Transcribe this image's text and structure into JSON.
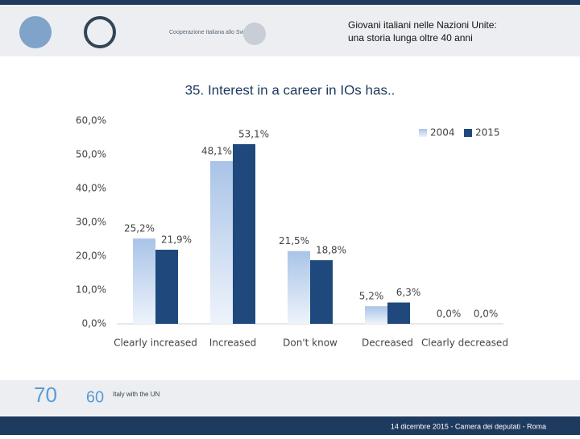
{
  "header": {
    "lines": [
      "Giovani italiani nelle Nazioni Unite:",
      "una storia lunga oltre 40 anni"
    ],
    "logo_text": "Cooperazione Italiana allo Sviluppo"
  },
  "chart_data": {
    "type": "bar",
    "title": "35. Interest in a career in IOs has..",
    "categories": [
      "Clearly increased",
      "Increased",
      "Don't know",
      "Decreased",
      "Clearly decreased"
    ],
    "series": [
      {
        "name": "2004",
        "color": "#a9c4e8",
        "values": [
          25.2,
          48.1,
          21.5,
          5.2,
          0.0
        ],
        "value_labels": [
          "25,2%",
          "48,1%",
          "21,5%",
          "5,2%",
          "0,0%"
        ]
      },
      {
        "name": "2015",
        "color": "#1f497d",
        "values": [
          21.9,
          53.1,
          18.8,
          6.3,
          0.0
        ],
        "value_labels": [
          "21,9%",
          "53,1%",
          "18,8%",
          "6,3%",
          "0,0%"
        ]
      }
    ],
    "ylim": [
      0,
      60
    ],
    "yticks": [
      {
        "value": 0,
        "label": "0,0%"
      },
      {
        "value": 10,
        "label": "10,0%"
      },
      {
        "value": 20,
        "label": "20,0%"
      },
      {
        "value": 30,
        "label": "30,0%"
      },
      {
        "value": 40,
        "label": "40,0%"
      },
      {
        "value": 50,
        "label": "50,0%"
      },
      {
        "value": 60,
        "label": "60,0%"
      }
    ],
    "legend": "top-right"
  },
  "footer": {
    "date": "14 dicembre 2015 - Camera dei deputati - Roma",
    "badge": "60",
    "badge_text": "Italy with the UN"
  }
}
